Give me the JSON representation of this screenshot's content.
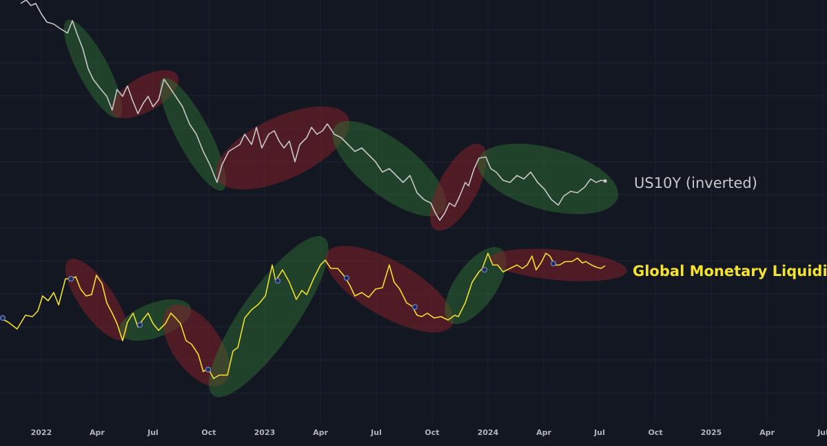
{
  "chart_data": {
    "type": "line",
    "xlim": [
      -2.22,
      42.22
    ],
    "ylim": [
      0,
      615
    ],
    "xticks": [
      {
        "value": 0,
        "label": "2022"
      },
      {
        "value": 3,
        "label": "Apr"
      },
      {
        "value": 6,
        "label": "Jul"
      },
      {
        "value": 9,
        "label": "Oct"
      },
      {
        "value": 12,
        "label": "2023"
      },
      {
        "value": 15,
        "label": "Apr"
      },
      {
        "value": 18,
        "label": "Jul"
      },
      {
        "value": 21,
        "label": "Oct"
      },
      {
        "value": 24,
        "label": "2024"
      },
      {
        "value": 27,
        "label": "Apr"
      },
      {
        "value": 30,
        "label": "Jul"
      },
      {
        "value": 33,
        "label": "Oct"
      },
      {
        "value": 36,
        "label": "2025"
      },
      {
        "value": 39,
        "label": "Apr"
      },
      {
        "value": 42,
        "label": "Jul"
      }
    ],
    "grid": true,
    "series": [
      {
        "name": "US10Y (inverted)",
        "color": "#c9c9cc",
        "x": [
          -1.11,
          -0.81,
          -0.56,
          -0.3,
          0,
          0.3,
          0.67,
          1.04,
          1.41,
          1.67,
          1.93,
          2.22,
          2.52,
          2.78,
          3.15,
          3.52,
          3.81,
          4.07,
          4.37,
          4.63,
          4.89,
          5.19,
          5.48,
          5.74,
          6,
          6.3,
          6.59,
          6.85,
          7.22,
          7.59,
          7.96,
          8.33,
          8.7,
          9.07,
          9.44,
          9.7,
          10.07,
          10.37,
          10.67,
          10.93,
          11.3,
          11.56,
          11.85,
          12.22,
          12.52,
          12.78,
          13.04,
          13.33,
          13.63,
          13.89,
          14.26,
          14.52,
          14.81,
          15.11,
          15.37,
          15.74,
          16.11,
          16.48,
          16.85,
          17.22,
          17.59,
          17.96,
          18.33,
          18.7,
          19.07,
          19.44,
          19.81,
          20.19,
          20.56,
          20.93,
          21.19,
          21.41,
          21.67,
          21.93,
          22.22,
          22.48,
          22.78,
          22.96,
          23.26,
          23.52,
          23.89,
          24.15,
          24.44,
          24.81,
          25.19,
          25.56,
          25.93,
          26.3,
          26.67,
          27.04,
          27.41,
          27.78,
          28.07,
          28.44,
          28.81,
          29.19,
          29.52,
          29.81,
          30.07,
          30.3
        ],
        "values": [
          610,
          615,
          607,
          610,
          595,
          583,
          580,
          573,
          567,
          585,
          565,
          545,
          515,
          500,
          487,
          475,
          455,
          485,
          475,
          490,
          470,
          450,
          465,
          475,
          460,
          470,
          500,
          490,
          475,
          460,
          435,
          420,
          395,
          375,
          350,
          375,
          395,
          400,
          405,
          420,
          405,
          430,
          400,
          420,
          425,
          410,
          400,
          410,
          380,
          405,
          415,
          430,
          420,
          425,
          435,
          420,
          415,
          405,
          395,
          400,
          390,
          380,
          365,
          370,
          360,
          350,
          360,
          335,
          325,
          320,
          305,
          295,
          305,
          320,
          315,
          330,
          350,
          345,
          370,
          385,
          387,
          370,
          365,
          353,
          350,
          360,
          355,
          365,
          350,
          340,
          325,
          317,
          330,
          337,
          335,
          343,
          355,
          350,
          353,
          352
        ]
      },
      {
        "name": "Global Monetary Liquidity",
        "color": "#f5e12f",
        "x": [
          -2.22,
          -1.78,
          -1.3,
          -0.85,
          -0.48,
          -0.19,
          0.07,
          0.37,
          0.67,
          0.93,
          1.3,
          1.59,
          1.85,
          2.11,
          2.41,
          2.7,
          2.96,
          3.26,
          3.52,
          3.81,
          4.07,
          4.37,
          4.63,
          4.93,
          5.19,
          5.44,
          5.74,
          6,
          6.3,
          6.67,
          6.96,
          7.22,
          7.48,
          7.78,
          8.07,
          8.44,
          8.7,
          8.96,
          9.26,
          9.56,
          10,
          10.3,
          10.56,
          10.93,
          11.3,
          11.67,
          12.04,
          12.41,
          12.59,
          12.96,
          13.33,
          13.7,
          14,
          14.26,
          14.63,
          15,
          15.26,
          15.56,
          15.93,
          16.3,
          16.59,
          16.85,
          17.22,
          17.59,
          17.96,
          18.33,
          18.7,
          18.96,
          19.26,
          19.63,
          19.93,
          20.19,
          20.44,
          20.74,
          21.11,
          21.48,
          21.85,
          22.22,
          22.41,
          22.78,
          23.15,
          23.52,
          23.7,
          24,
          24.26,
          24.52,
          24.81,
          25.19,
          25.56,
          25.85,
          26.11,
          26.37,
          26.59,
          26.85,
          27.11,
          27.33,
          27.59,
          27.85,
          28.15,
          28.52,
          28.81,
          29.07,
          29.26,
          29.56,
          29.81,
          30.07,
          30.3
        ],
        "values": [
          153,
          147,
          137,
          157,
          155,
          163,
          185,
          178,
          190,
          172,
          210,
          210,
          213,
          195,
          185,
          187,
          215,
          203,
          175,
          160,
          145,
          120,
          147,
          160,
          140,
          150,
          160,
          145,
          135,
          145,
          160,
          153,
          145,
          120,
          115,
          100,
          75,
          80,
          65,
          70,
          70,
          105,
          110,
          153,
          165,
          173,
          185,
          230,
          207,
          223,
          205,
          180,
          193,
          187,
          210,
          230,
          237,
          225,
          225,
          213,
          200,
          185,
          190,
          183,
          195,
          197,
          230,
          205,
          195,
          175,
          170,
          157,
          155,
          160,
          153,
          155,
          150,
          157,
          155,
          175,
          205,
          220,
          225,
          247,
          230,
          230,
          220,
          225,
          230,
          225,
          230,
          243,
          223,
          233,
          247,
          243,
          230,
          230,
          235,
          235,
          240,
          233,
          235,
          230,
          227,
          225,
          229
        ]
      }
    ]
  }
}
